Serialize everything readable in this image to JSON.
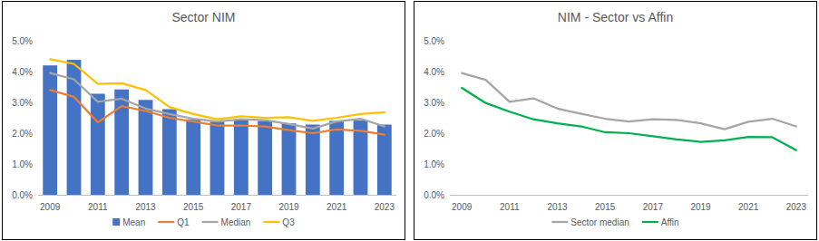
{
  "chart_data": [
    {
      "type": "bar",
      "title": "Sector NIM",
      "categories": [
        "2009",
        null,
        "2011",
        null,
        "2013",
        null,
        "2015",
        null,
        "2017",
        null,
        "2019",
        null,
        "2021",
        null,
        "2023"
      ],
      "series": [
        {
          "name": "Mean",
          "type": "bar",
          "color": "#4472c4",
          "values": [
            4.2,
            4.38,
            3.28,
            3.42,
            3.08,
            2.78,
            2.45,
            2.37,
            2.45,
            2.4,
            2.32,
            2.28,
            2.4,
            2.42,
            2.28
          ]
        },
        {
          "name": "Q1",
          "type": "line",
          "color": "#ed7d31",
          "line_style": "solid",
          "values": [
            3.4,
            3.18,
            2.35,
            2.88,
            2.72,
            2.5,
            2.38,
            2.25,
            2.25,
            2.22,
            2.1,
            2.0,
            2.12,
            2.08,
            1.95
          ]
        },
        {
          "name": "Median",
          "type": "line",
          "color": "#a5a5a5",
          "line_style": "solid",
          "values": [
            3.95,
            3.75,
            3.02,
            3.12,
            2.8,
            2.62,
            2.47,
            2.38,
            2.45,
            2.42,
            2.3,
            2.15,
            2.38,
            2.47,
            2.22
          ]
        },
        {
          "name": "Q3",
          "type": "line",
          "color": "#ffc000",
          "line_style": "solid",
          "values": [
            4.4,
            4.25,
            3.6,
            3.62,
            3.4,
            2.85,
            2.62,
            2.45,
            2.55,
            2.5,
            2.52,
            2.4,
            2.5,
            2.62,
            2.68
          ]
        }
      ],
      "ylim": [
        0,
        5
      ],
      "yticks": [
        {
          "value": 0,
          "label": "0.0%"
        },
        {
          "value": 1,
          "label": "1.0%"
        },
        {
          "value": 2,
          "label": "2.0%"
        },
        {
          "value": 3,
          "label": "3.0%"
        },
        {
          "value": 4,
          "label": "4.0%"
        },
        {
          "value": 5,
          "label": "5.0%"
        }
      ],
      "grid": false,
      "legend": "bottom"
    },
    {
      "type": "line",
      "title": "NIM - Sector vs Affin",
      "categories": [
        "2009",
        null,
        "2011",
        null,
        "2013",
        null,
        "2015",
        null,
        "2017",
        null,
        "2019",
        null,
        "2021",
        null,
        "2023"
      ],
      "series": [
        {
          "name": "Sector median",
          "color": "#a5a5a5",
          "line_style": "solid",
          "values": [
            3.95,
            3.73,
            3.02,
            3.13,
            2.8,
            2.63,
            2.47,
            2.38,
            2.45,
            2.43,
            2.32,
            2.13,
            2.37,
            2.47,
            2.22
          ]
        },
        {
          "name": "Affin",
          "color": "#00b050",
          "line_style": "solid",
          "values": [
            3.47,
            2.98,
            2.7,
            2.45,
            2.32,
            2.22,
            2.03,
            2.0,
            1.9,
            1.8,
            1.72,
            1.77,
            1.88,
            1.87,
            1.45
          ]
        }
      ],
      "ylim": [
        0,
        5
      ],
      "yticks": [
        {
          "value": 0,
          "label": "0.0%"
        },
        {
          "value": 1,
          "label": "1.0%"
        },
        {
          "value": 2,
          "label": "2.0%"
        },
        {
          "value": 3,
          "label": "3.0%"
        },
        {
          "value": 4,
          "label": "4.0%"
        },
        {
          "value": 5,
          "label": "5.0%"
        }
      ],
      "grid": false,
      "legend": "bottom"
    }
  ]
}
